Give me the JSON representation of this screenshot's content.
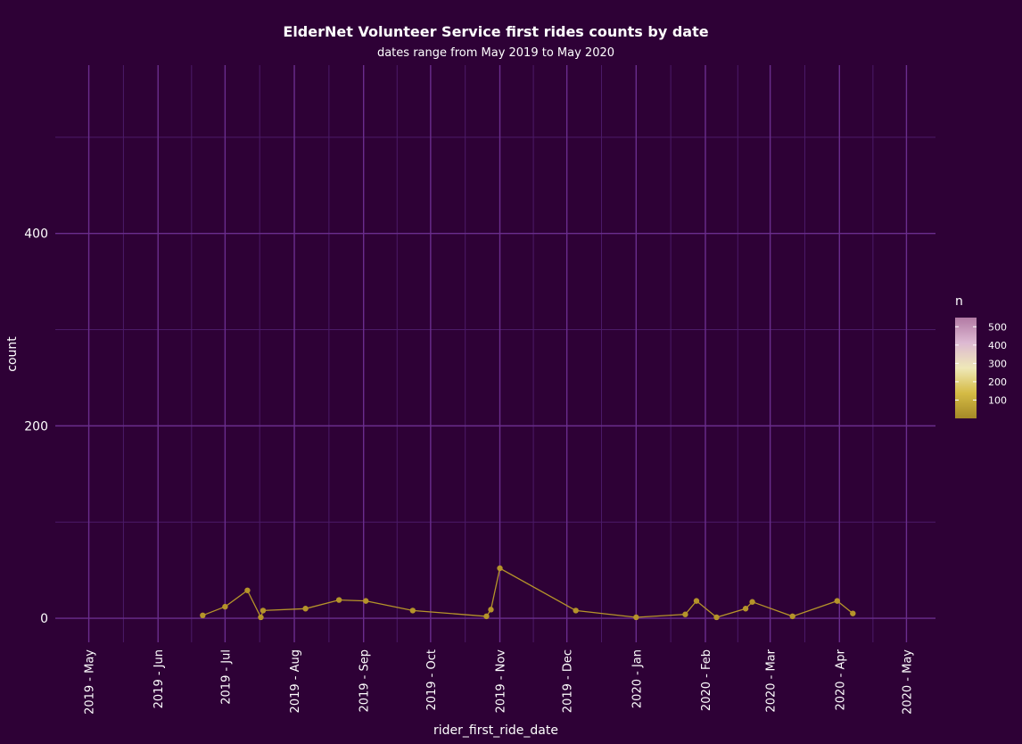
{
  "chart_data": {
    "type": "line",
    "title": "ElderNet Volunteer Service first rides counts by date",
    "subtitle": "dates range from May 2019 to May 2020",
    "xlabel": "rider_first_ride_date",
    "ylabel": "count",
    "xlim": [
      "2019-04-16",
      "2020-05-14"
    ],
    "ylim": [
      -25,
      575
    ],
    "y_ticks": [
      0,
      200,
      400
    ],
    "x_ticks": [
      {
        "date": "2019-05-01",
        "label": "2019 - May"
      },
      {
        "date": "2019-06-01",
        "label": "2019 - Jun"
      },
      {
        "date": "2019-07-01",
        "label": "2019 - Jul"
      },
      {
        "date": "2019-08-01",
        "label": "2019 - Aug"
      },
      {
        "date": "2019-09-01",
        "label": "2019 - Sep"
      },
      {
        "date": "2019-10-01",
        "label": "2019 - Oct"
      },
      {
        "date": "2019-11-01",
        "label": "2019 - Nov"
      },
      {
        "date": "2019-12-01",
        "label": "2019 - Dec"
      },
      {
        "date": "2020-01-01",
        "label": "2020 - Jan"
      },
      {
        "date": "2020-02-01",
        "label": "2020 - Feb"
      },
      {
        "date": "2020-03-01",
        "label": "2020 - Mar"
      },
      {
        "date": "2020-04-01",
        "label": "2020 - Apr"
      },
      {
        "date": "2020-05-01",
        "label": "2020 - May"
      }
    ],
    "grid": true,
    "legend": {
      "title": "n",
      "placement": "right",
      "range": [
        0,
        550
      ],
      "labels": [
        100,
        200,
        300,
        400,
        500
      ]
    },
    "series": [
      {
        "color": "#b5942a",
        "x": [
          "2019-06-21",
          "2019-07-01",
          "2019-07-11",
          "2019-07-17",
          "2019-07-18",
          "2019-08-06",
          "2019-08-21",
          "2019-09-02",
          "2019-09-23",
          "2019-10-26",
          "2019-10-28",
          "2019-11-01",
          "2019-12-05",
          "2020-01-01",
          "2020-01-23",
          "2020-01-28",
          "2020-02-06",
          "2020-02-19",
          "2020-02-22",
          "2020-03-11",
          "2020-03-31",
          "2020-04-07"
        ],
        "y": [
          3,
          12,
          29,
          1,
          8,
          10,
          19,
          18,
          8,
          2,
          9,
          52,
          8,
          1,
          4,
          18,
          1,
          10,
          17,
          2,
          18,
          5
        ]
      }
    ],
    "colors": {
      "background": "#2e0136",
      "grid_major": "#6a2d8d",
      "grid_minor": "#4b1a68",
      "line": "#b5942a",
      "text": "#ffffff",
      "gradient": [
        "#a58a27",
        "#d5bb45",
        "#efe8b8",
        "#ddb9d2",
        "#b27aa4"
      ]
    }
  }
}
